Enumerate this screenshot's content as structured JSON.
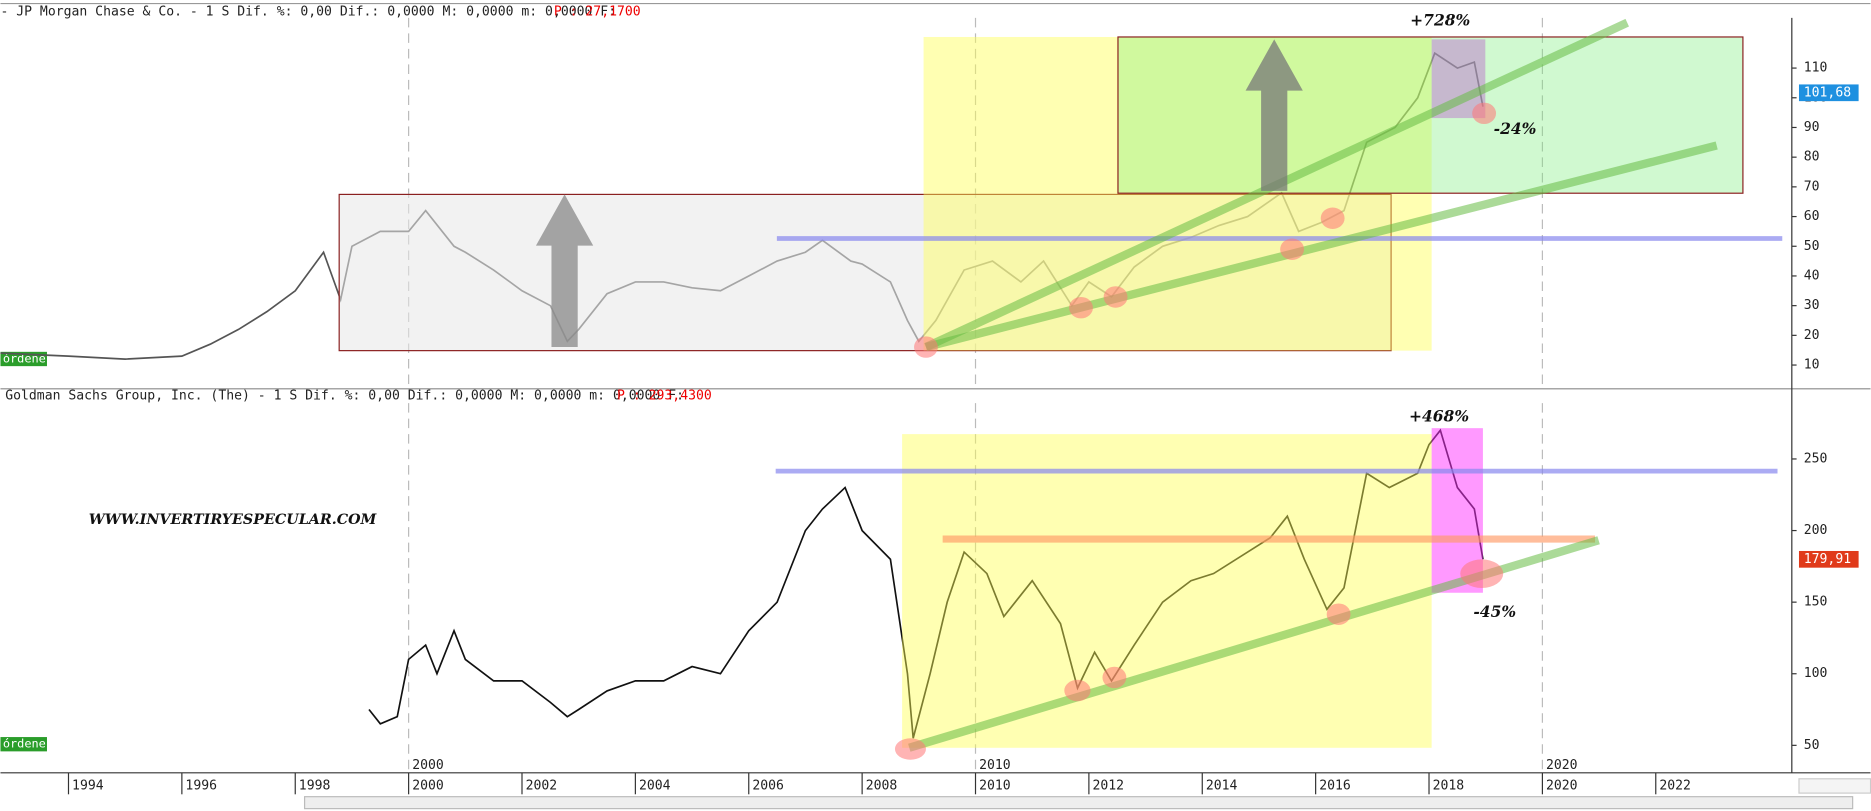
{
  "chart_data": [
    {
      "type": "line",
      "title": "- JP Morgan Chase & Co. -  1 S Dif. %: 0,00 Dif.: 0,0000 M: 0,0000 m: 0,0000 F:",
      "price_note": "P : 27,1700",
      "orders_label": "órdenes",
      "xlim": [
        1992.8,
        2024.4
      ],
      "ylim": [
        2.4,
        126.9
      ],
      "yticks": [
        10,
        20,
        30,
        40,
        50,
        60,
        70,
        80,
        90,
        100,
        110
      ],
      "decade_lines": [
        2000,
        2010,
        2020
      ],
      "last_price": {
        "value": 101.68,
        "label": "101,68"
      },
      "annotations": [
        "+728%",
        "-24%"
      ],
      "series": [
        {
          "name": "JP Morgan Chase & Co.",
          "color": "#555555",
          "x": [
            1992.8,
            1994,
            1995,
            1996,
            1996.5,
            1997,
            1997.5,
            1998,
            1998.5,
            1998.8,
            1999,
            1999.5,
            2000,
            2000.3,
            2000.8,
            2001,
            2001.5,
            2002,
            2002.5,
            2002.8,
            2003,
            2003.5,
            2004,
            2004.5,
            2005,
            2005.5,
            2006,
            2006.5,
            2007,
            2007.3,
            2007.8,
            2008,
            2008.5,
            2008.8,
            2009.0,
            2009.3,
            2009.8,
            2010.3,
            2010.8,
            2011.2,
            2011.7,
            2012,
            2012.4,
            2012.8,
            2013.3,
            2013.8,
            2014.3,
            2014.8,
            2015.4,
            2015.7,
            2016.1,
            2016.5,
            2016.9,
            2017.4,
            2017.8,
            2018.1,
            2018.5,
            2018.8,
            2018.95
          ],
          "values": [
            14,
            13,
            12,
            13,
            17,
            22,
            28,
            35,
            48,
            32,
            50,
            55,
            55,
            62,
            50,
            48,
            42,
            35,
            30,
            18,
            22,
            34,
            38,
            38,
            36,
            35,
            40,
            45,
            48,
            52,
            45,
            44,
            38,
            25,
            18,
            25,
            42,
            45,
            38,
            45,
            30,
            38,
            33,
            43,
            50,
            53,
            57,
            60,
            68,
            55,
            58,
            62,
            85,
            90,
            100,
            115,
            110,
            112,
            97
          ]
        }
      ]
    },
    {
      "type": "line",
      "title": "Goldman Sachs Group, Inc. (The) -  1 S Dif. %: 0,00 Dif.: 0,0000 M: 0,0000 m: 0,0000 F:",
      "price_note": "P : 293,4300",
      "orders_label": "órdenes",
      "watermark": "WWW.INVERTIRYESPECULAR.COM",
      "xlim": [
        1992.8,
        2024.4
      ],
      "ylim": [
        30.8,
        289
      ],
      "yticks": [
        50,
        100,
        150,
        200,
        250
      ],
      "xticks": [
        1994,
        1996,
        1998,
        2000,
        2002,
        2004,
        2006,
        2008,
        2010,
        2012,
        2014,
        2016,
        2018,
        2020,
        2022
      ],
      "decade_lines": [
        2000,
        2010,
        2020
      ],
      "last_price": {
        "value": 179.91,
        "label": "179,91"
      },
      "annotations": [
        "+468%",
        "-45%"
      ],
      "series": [
        {
          "name": "Goldman Sachs Group, Inc. (The)",
          "color": "#111111",
          "x": [
            1999.3,
            1999.5,
            1999.8,
            2000,
            2000.3,
            2000.5,
            2000.8,
            2001,
            2001.5,
            2002,
            2002.5,
            2002.8,
            2003,
            2003.5,
            2004,
            2004.5,
            2005,
            2005.5,
            2006,
            2006.5,
            2007,
            2007.3,
            2007.7,
            2008,
            2008.5,
            2008.8,
            2008.9,
            2009.2,
            2009.5,
            2009.8,
            2010.2,
            2010.5,
            2011,
            2011.5,
            2011.8,
            2012.1,
            2012.4,
            2012.8,
            2013.3,
            2013.8,
            2014.2,
            2014.8,
            2015.2,
            2015.5,
            2015.8,
            2016.2,
            2016.5,
            2016.9,
            2017.3,
            2017.8,
            2018.0,
            2018.2,
            2018.5,
            2018.8,
            2018.95
          ],
          "values": [
            75,
            65,
            70,
            110,
            120,
            100,
            130,
            110,
            95,
            95,
            80,
            70,
            75,
            88,
            95,
            95,
            105,
            100,
            130,
            150,
            200,
            215,
            230,
            200,
            180,
            100,
            55,
            100,
            150,
            185,
            170,
            140,
            165,
            135,
            90,
            115,
            95,
            120,
            150,
            165,
            170,
            185,
            195,
            210,
            180,
            145,
            160,
            240,
            230,
            240,
            260,
            270,
            230,
            215,
            180
          ]
        }
      ]
    }
  ]
}
